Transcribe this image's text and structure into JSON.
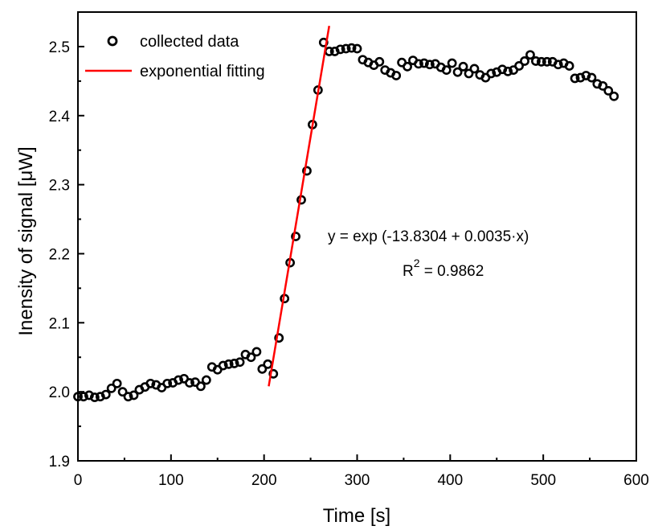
{
  "chart_data": {
    "type": "scatter",
    "xlabel": "Time [s]",
    "ylabel": "Inensity of signal [μW]",
    "xlim": [
      0,
      600
    ],
    "ylim": [
      1.9,
      2.55
    ],
    "xticks": [
      0,
      100,
      200,
      300,
      400,
      500,
      600
    ],
    "yticks": [
      1.9,
      2.0,
      2.1,
      2.2,
      2.3,
      2.4,
      2.5
    ],
    "xtick_labels": [
      "0",
      "100",
      "200",
      "300",
      "400",
      "500",
      "600"
    ],
    "ytick_labels": [
      "1.9",
      "2.0",
      "2.1",
      "2.2",
      "2.3",
      "2.4",
      "2.5"
    ],
    "grid": false,
    "legend_position": "top-left",
    "legend": [
      {
        "label": "collected data",
        "marker": "open-circle",
        "color": "#000000"
      },
      {
        "label": "exponential fitting",
        "marker": "line",
        "color": "#ff0000"
      }
    ],
    "annotation": {
      "equation": "y = exp (-13.8304 + 0.0035·x)",
      "r2_prefix": "R",
      "r2_exp": "2",
      "r2_suffix": " = 0.9862"
    },
    "series": [
      {
        "name": "collected data",
        "color": "#000000",
        "x": [
          0,
          6,
          12,
          18,
          24,
          30,
          36,
          42,
          48,
          54,
          60,
          66,
          72,
          78,
          84,
          90,
          96,
          102,
          108,
          114,
          120,
          126,
          132,
          138,
          144,
          150,
          156,
          162,
          168,
          174,
          180,
          186,
          192,
          198,
          204,
          210,
          216,
          222,
          228,
          234,
          240,
          246,
          252,
          258,
          264,
          270,
          276,
          282,
          288,
          294,
          300,
          306,
          312,
          318,
          324,
          330,
          336,
          342,
          348,
          354,
          360,
          366,
          372,
          378,
          384,
          390,
          396,
          402,
          408,
          414,
          420,
          426,
          432,
          438,
          444,
          450,
          456,
          462,
          468,
          474,
          480,
          486,
          492,
          498,
          504,
          510,
          516,
          522,
          528,
          534,
          540,
          546,
          552,
          558,
          564,
          570,
          576
        ],
        "y": [
          1.993,
          1.993,
          1.995,
          1.992,
          1.993,
          1.996,
          2.005,
          2.012,
          2.0,
          1.993,
          1.995,
          2.003,
          2.007,
          2.012,
          2.01,
          2.006,
          2.012,
          2.013,
          2.017,
          2.019,
          2.013,
          2.014,
          2.008,
          2.017,
          2.036,
          2.032,
          2.038,
          2.04,
          2.041,
          2.043,
          2.054,
          2.05,
          2.058,
          2.033,
          2.04,
          2.026,
          2.078,
          2.135,
          2.187,
          2.225,
          2.278,
          2.32,
          2.387,
          2.437,
          2.506,
          2.493,
          2.493,
          2.496,
          2.497,
          2.498,
          2.497,
          2.481,
          2.477,
          2.473,
          2.478,
          2.466,
          2.462,
          2.458,
          2.477,
          2.471,
          2.48,
          2.475,
          2.476,
          2.474,
          2.475,
          2.47,
          2.466,
          2.476,
          2.463,
          2.471,
          2.461,
          2.468,
          2.459,
          2.455,
          2.461,
          2.463,
          2.467,
          2.464,
          2.466,
          2.472,
          2.479,
          2.488,
          2.479,
          2.478,
          2.478,
          2.478,
          2.474,
          2.476,
          2.472,
          2.454,
          2.455,
          2.458,
          2.455,
          2.446,
          2.443,
          2.436,
          2.428
        ]
      },
      {
        "name": "exponential fitting",
        "color": "#ff0000",
        "x": [
          205,
          270
        ],
        "y": [
          2.008,
          2.53
        ]
      }
    ]
  }
}
